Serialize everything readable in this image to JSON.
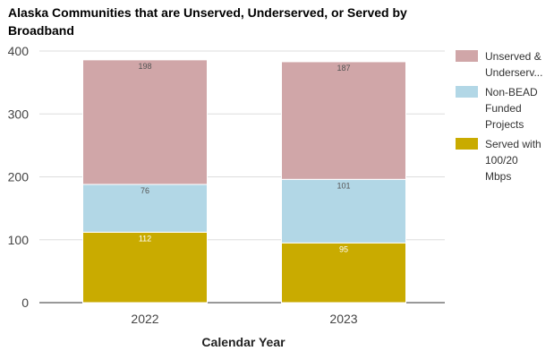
{
  "chart_data": {
    "type": "bar",
    "stacked": true,
    "title": "Alaska Communities that are Unserved, Underserved, or Served by Broadband",
    "xlabel": "Calendar Year",
    "ylabel": "",
    "categories": [
      "2022",
      "2023"
    ],
    "ylim": [
      0,
      400
    ],
    "yticks": [
      0,
      100,
      200,
      300,
      400
    ],
    "grid": true,
    "legend_position": "right",
    "series": [
      {
        "name": "Served with 100/20 Mbps",
        "legend_lines": [
          "Served with",
          "100/20",
          "Mbps"
        ],
        "color": "#c9ab00",
        "label_color": "#ffffff",
        "values": [
          112,
          95
        ]
      },
      {
        "name": "Non-BEAD Funded Projects",
        "legend_lines": [
          "Non-BEAD",
          "Funded",
          "Projects"
        ],
        "color": "#b2d7e6",
        "label_color": "#555555",
        "values": [
          76,
          101
        ]
      },
      {
        "name": "Unserved & Underserv...",
        "legend_lines": [
          "Unserved &",
          "Underserv..."
        ],
        "color": "#d0a6a8",
        "label_color": "#555555",
        "values": [
          198,
          187
        ]
      }
    ]
  }
}
